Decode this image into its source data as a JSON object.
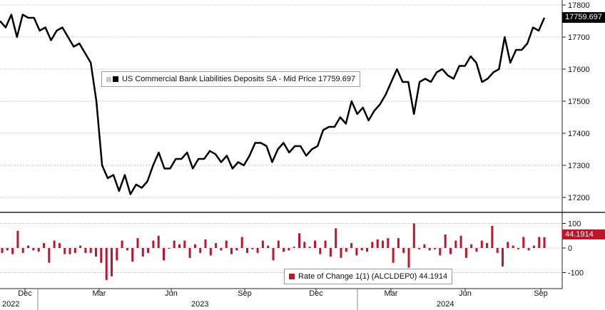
{
  "chart_data": [
    {
      "type": "line",
      "legend": "US Commercial Bank Liabilities Deposits SA - Mid Price 17759.697",
      "last_value_label": "17759.697",
      "ylim": [
        17160,
        17830
      ],
      "yticks": [
        "17200",
        "17300",
        "17400",
        "17500",
        "17600",
        "17700",
        "17800"
      ],
      "color": "#000000",
      "series": [
        {
          "values": [
            17750,
            17730,
            17770,
            17700,
            17770,
            17760,
            17760,
            17720,
            17730,
            17690,
            17720,
            17730,
            17700,
            17670,
            17680,
            17650,
            17620,
            17500,
            17300,
            17260,
            17270,
            17220,
            17270,
            17210,
            17240,
            17230,
            17250,
            17300,
            17340,
            17290,
            17290,
            17320,
            17320,
            17340,
            17290,
            17320,
            17320,
            17345,
            17335,
            17310,
            17330,
            17290,
            17310,
            17300,
            17330,
            17370,
            17370,
            17360,
            17310,
            17350,
            17370,
            17340,
            17360,
            17360,
            17330,
            17350,
            17360,
            17410,
            17420,
            17420,
            17450,
            17430,
            17500,
            17460,
            17480,
            17440,
            17470,
            17490,
            17520,
            17560,
            17600,
            17560,
            17560,
            17460,
            17560,
            17570,
            17560,
            17590,
            17600,
            17580,
            17570,
            17610,
            17610,
            17640,
            17620,
            17560,
            17570,
            17590,
            17600,
            17700,
            17620,
            17660,
            17660,
            17680,
            17730,
            17720,
            17760
          ]
        }
      ]
    },
    {
      "type": "bar",
      "legend": "Rate of Change 1(1) (ALCLDEP0) 44.1914",
      "last_value_label": "44.1914",
      "ylim": [
        -150,
        120
      ],
      "yticks": [
        "100",
        "0",
        "-100"
      ],
      "color": "#c0142c",
      "series": [
        {
          "values": [
            -20,
            -10,
            -25,
            70,
            -20,
            10,
            -10,
            -15,
            20,
            -60,
            30,
            20,
            -25,
            -25,
            -20,
            10,
            -20,
            -20,
            -35,
            -60,
            -130,
            -115,
            -50,
            30,
            -10,
            -55,
            40,
            -35,
            -20,
            30,
            50,
            -50,
            0,
            30,
            15,
            30,
            -40,
            15,
            -20,
            35,
            -30,
            20,
            -10,
            30,
            -25,
            -10,
            45,
            -20,
            -5,
            -20,
            30,
            10,
            -50,
            30,
            -15,
            -10,
            5,
            60,
            25,
            5,
            30,
            -25,
            30,
            -35,
            80,
            -40,
            -15,
            20,
            -30,
            -10,
            -15,
            25,
            35,
            30,
            40,
            -60,
            40,
            -20,
            -80,
            100,
            -5,
            15,
            -10,
            -5,
            -30,
            55,
            -25,
            30,
            50,
            -40,
            15,
            -15,
            30,
            20,
            90,
            -20,
            -75,
            25,
            10,
            -5,
            45,
            -10,
            10,
            45,
            44
          ]
        }
      ]
    }
  ],
  "x_axis": {
    "month_labels": [
      "Dec",
      "Mar",
      "Jun",
      "Sep",
      "Dec",
      "Mar",
      "Jun",
      "Sep"
    ],
    "year_labels": [
      "2022",
      "2023",
      "2024"
    ]
  }
}
